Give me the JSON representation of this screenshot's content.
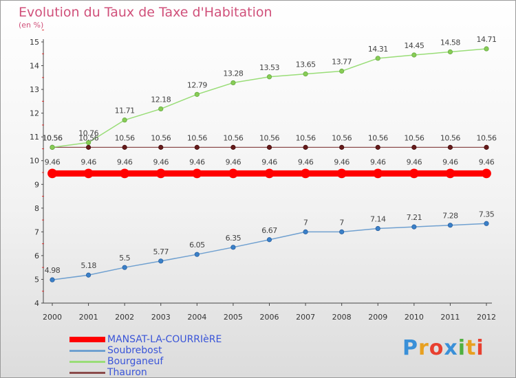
{
  "chart_data": {
    "type": "line",
    "title": "Evolution du Taux de Taxe d'Habitation",
    "subtitle": "(en %)",
    "x": [
      "2000",
      "2001",
      "2002",
      "2003",
      "2004",
      "2005",
      "2006",
      "2007",
      "2008",
      "2009",
      "2010",
      "2011",
      "2012"
    ],
    "ylim": [
      4,
      15
    ],
    "yticks": [
      "4",
      "5",
      "6",
      "7",
      "8",
      "9",
      "10",
      "11",
      "12",
      "13",
      "14",
      "15"
    ],
    "grid": false,
    "legend_position": "bottom-left",
    "series": [
      {
        "name": "MANSAT-LA-COURRIèRE",
        "color": "#ff0000",
        "values": [
          9.46,
          9.46,
          9.46,
          9.46,
          9.46,
          9.46,
          9.46,
          9.46,
          9.46,
          9.46,
          9.46,
          9.46,
          9.46
        ],
        "labels": [
          "9.46",
          "9.46",
          "9.46",
          "9.46",
          "9.46",
          "9.46",
          "9.46",
          "9.46",
          "9.46",
          "9.46",
          "9.46",
          "9.46",
          "9.46"
        ]
      },
      {
        "name": "Soubrebost",
        "color": "#6fa0d0",
        "values": [
          4.98,
          5.18,
          5.5,
          5.77,
          6.05,
          6.35,
          6.67,
          7,
          7,
          7.14,
          7.21,
          7.28,
          7.35
        ],
        "labels": [
          "4.98",
          "5.18",
          "5.5",
          "5.77",
          "6.05",
          "6.35",
          "6.67",
          "7",
          "7",
          "7.14",
          "7.21",
          "7.28",
          "7.35"
        ]
      },
      {
        "name": "Bourganeuf",
        "color": "#99dd77",
        "values": [
          10.56,
          10.76,
          11.71,
          12.18,
          12.79,
          13.28,
          13.53,
          13.65,
          13.77,
          14.31,
          14.45,
          14.58,
          14.71
        ],
        "labels": [
          "10.56",
          "10.76",
          "11.71",
          "12.18",
          "12.79",
          "13.28",
          "13.53",
          "13.65",
          "13.77",
          "14.31",
          "14.45",
          "14.58",
          "14.71"
        ]
      },
      {
        "name": "Thauron",
        "color": "#8a4a4a",
        "values": [
          10.56,
          10.56,
          10.56,
          10.56,
          10.56,
          10.56,
          10.56,
          10.56,
          10.56,
          10.56,
          10.56,
          10.56,
          10.56
        ],
        "labels": [
          "10.56",
          "10.56",
          "10.56",
          "10.56",
          "10.56",
          "10.56",
          "10.56",
          "10.56",
          "10.56",
          "10.56",
          "10.56",
          "10.56",
          "10.56"
        ]
      }
    ]
  },
  "logo": {
    "letters": [
      "P",
      "r",
      "o",
      "x",
      "i",
      "t",
      "i"
    ],
    "colors": [
      "#3a90d8",
      "#e8a020",
      "#e84030",
      "#3a90d8",
      "#50b040",
      "#e8a020",
      "#e84030"
    ]
  }
}
